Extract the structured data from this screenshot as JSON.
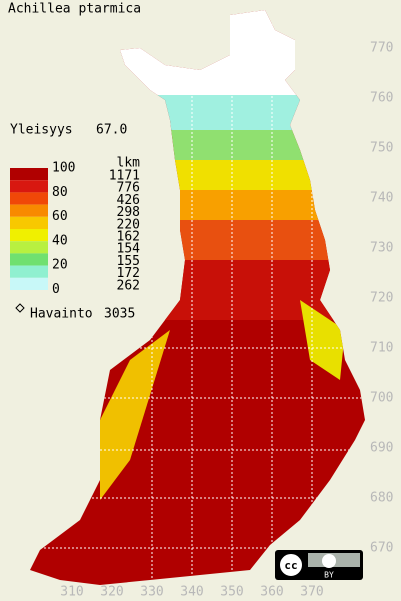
{
  "title": "Achillea ptarmica",
  "frequency": {
    "label": "Yleisyys",
    "value": "67.0"
  },
  "legend": {
    "scale_labels": [
      "100",
      "80",
      "60",
      "40",
      "20",
      "0"
    ],
    "count_header": "lkm",
    "counts": [
      "1171",
      "776",
      "426",
      "298",
      "220",
      "162",
      "154",
      "155",
      "172",
      "262"
    ],
    "colors": [
      "#b00000",
      "#d81810",
      "#f04808",
      "#f88a00",
      "#f8c800",
      "#f0f000",
      "#b8f040",
      "#70e070",
      "#90f0d0",
      "#c8f8f8"
    ]
  },
  "observations": {
    "label": "Havainto",
    "count": "3035"
  },
  "grid": {
    "y_labels": [
      "770",
      "760",
      "750",
      "740",
      "730",
      "720",
      "710",
      "700",
      "690",
      "680",
      "670"
    ],
    "x_labels": [
      "310",
      "320",
      "330",
      "340",
      "350",
      "360",
      "370"
    ]
  },
  "license": {
    "mark": "cc",
    "type": "BY"
  }
}
